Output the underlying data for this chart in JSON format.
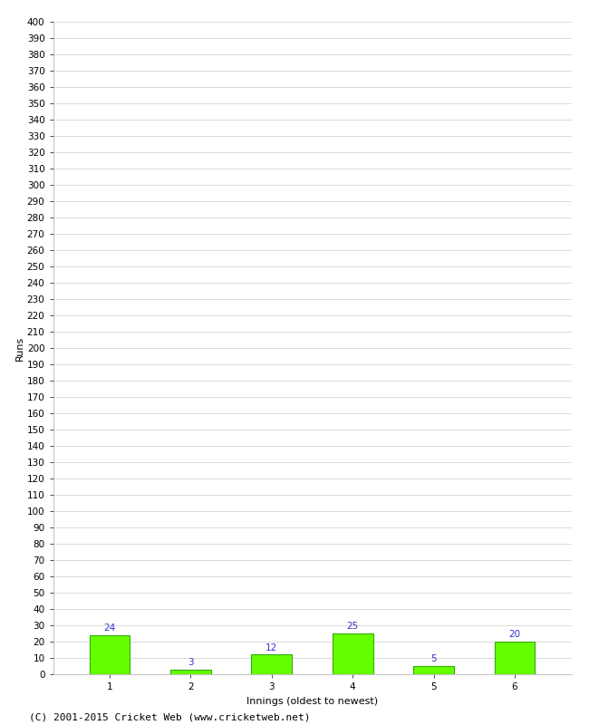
{
  "categories": [
    "1",
    "2",
    "3",
    "4",
    "5",
    "6"
  ],
  "values": [
    24,
    3,
    12,
    25,
    5,
    20
  ],
  "bar_color": "#66ff00",
  "bar_edge_color": "#33aa00",
  "xlabel": "Innings (oldest to newest)",
  "ylabel": "Runs",
  "ylim": [
    0,
    400
  ],
  "background_color": "#ffffff",
  "grid_color": "#cccccc",
  "footer": "(C) 2001-2015 Cricket Web (www.cricketweb.net)",
  "label_color": "#3333cc",
  "axis_fontsize": 8,
  "tick_fontsize": 7.5,
  "footer_fontsize": 8
}
